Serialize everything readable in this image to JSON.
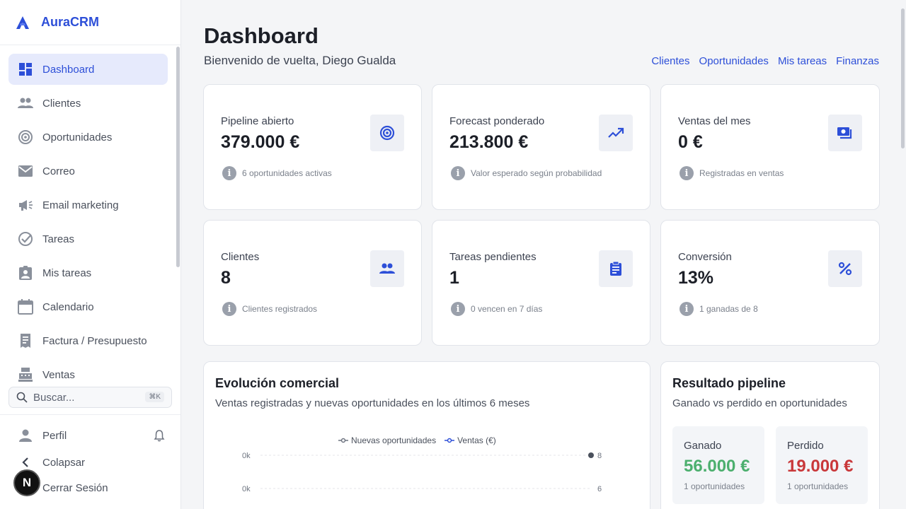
{
  "brand": {
    "name": "AuraCRM"
  },
  "nav": {
    "items": [
      {
        "label": "Dashboard",
        "icon": "dashboard-icon",
        "active": true
      },
      {
        "label": "Clientes",
        "icon": "people-icon"
      },
      {
        "label": "Oportunidades",
        "icon": "target-icon"
      },
      {
        "label": "Correo",
        "icon": "mail-icon"
      },
      {
        "label": "Email marketing",
        "icon": "megaphone-icon"
      },
      {
        "label": "Tareas",
        "icon": "check-circle-icon"
      },
      {
        "label": "Mis tareas",
        "icon": "user-badge-icon"
      },
      {
        "label": "Calendario",
        "icon": "calendar-icon"
      },
      {
        "label": "Factura / Presupuesto",
        "icon": "receipt-icon"
      },
      {
        "label": "Ventas",
        "icon": "cash-register-icon"
      }
    ]
  },
  "search": {
    "placeholder": "Buscar...",
    "shortcut": "⌘K"
  },
  "bottom": {
    "profile": "Perfil",
    "collapse": "Colapsar",
    "logout": "Cerrar Sesión",
    "avatar_letter": "N"
  },
  "header": {
    "title": "Dashboard",
    "welcome": "Bienvenido de vuelta, Diego Gualda",
    "links": [
      "Clientes",
      "Oportunidades",
      "Mis tareas",
      "Finanzas"
    ]
  },
  "kpis": [
    {
      "label": "Pipeline abierto",
      "value": "379.000 €",
      "note": "6 oportunidades activas",
      "icon": "target-icon"
    },
    {
      "label": "Forecast ponderado",
      "value": "213.800 €",
      "note": "Valor esperado según probabilidad",
      "icon": "trending-up-icon"
    },
    {
      "label": "Ventas del mes",
      "value": "0 €",
      "note": "Registradas en ventas",
      "icon": "payments-icon"
    },
    {
      "label": "Clientes",
      "value": "8",
      "note": "Clientes registrados",
      "icon": "people-icon"
    },
    {
      "label": "Tareas pendientes",
      "value": "1",
      "note": "0 vencen en 7 días",
      "icon": "clipboard-icon"
    },
    {
      "label": "Conversión",
      "value": "13%",
      "note": "1 ganadas de 8",
      "icon": "percent-icon"
    }
  ],
  "evolucion": {
    "title": "Evolución comercial",
    "subtitle": "Ventas registradas y nuevas oportunidades en los últimos 6 meses",
    "legend": [
      "Nuevas oportunidades",
      "Ventas (€)"
    ],
    "left_ticks": [
      "0k",
      "0k"
    ],
    "right_ticks": [
      "8",
      "6"
    ]
  },
  "resultado": {
    "title": "Resultado pipeline",
    "subtitle": "Ganado vs perdido en oportunidades",
    "ganado": {
      "label": "Ganado",
      "value": "56.000 €",
      "note": "1 oportunidades",
      "color": "#4caf6e"
    },
    "perdido": {
      "label": "Perdido",
      "value": "19.000 €",
      "note": "1 oportunidades",
      "color": "#c9383a"
    }
  },
  "colors": {
    "accent": "#2d4fd8",
    "active_bg": "#e6eafc"
  }
}
